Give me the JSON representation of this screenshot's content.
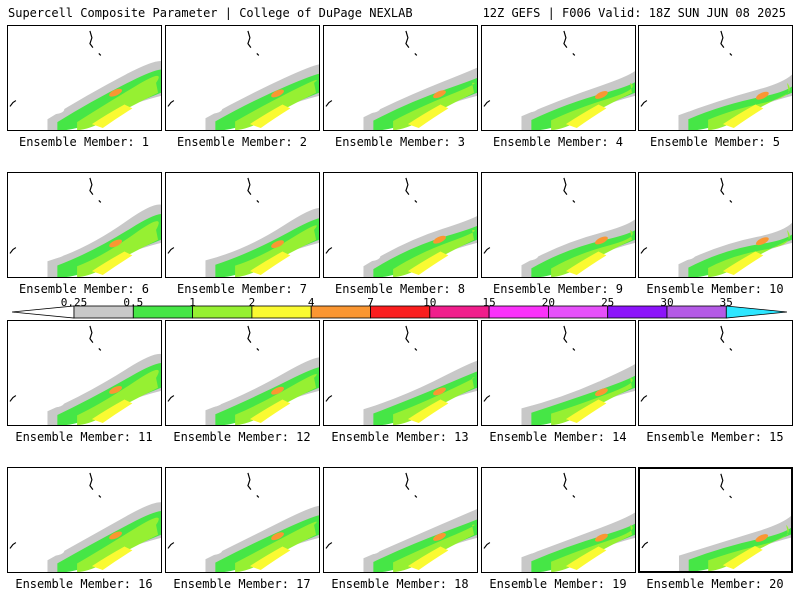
{
  "header": {
    "left_title": "Supercell Composite Parameter | College of DuPage NEXLAB",
    "right_title": "12Z GEFS | F006 Valid: 18Z SUN JUN 08 2025"
  },
  "colorbar": {
    "labels": [
      "0.25",
      "0.5",
      "1",
      "2",
      "4",
      "7",
      "10",
      "15",
      "20",
      "25",
      "30",
      "35"
    ],
    "colors": [
      "#ffffff",
      "#c8c8c8",
      "#46e646",
      "#96f032",
      "#fafa32",
      "#fa9632",
      "#fa1e1e",
      "#f01e8c",
      "#fa32fa",
      "#e650fa",
      "#8c14fa",
      "#b45ae6",
      "#2de6ff"
    ]
  },
  "members": [
    {
      "label": "Ensemble Member: 1"
    },
    {
      "label": "Ensemble Member: 2"
    },
    {
      "label": "Ensemble Member: 3"
    },
    {
      "label": "Ensemble Member: 4"
    },
    {
      "label": "Ensemble Member: 5"
    },
    {
      "label": "Ensemble Member: 6"
    },
    {
      "label": "Ensemble Member: 7"
    },
    {
      "label": "Ensemble Member: 8"
    },
    {
      "label": "Ensemble Member: 9"
    },
    {
      "label": "Ensemble Member: 10"
    },
    {
      "label": "Ensemble Member: 11"
    },
    {
      "label": "Ensemble Member: 12"
    },
    {
      "label": "Ensemble Member: 13"
    },
    {
      "label": "Ensemble Member: 14"
    },
    {
      "label": "Ensemble Member: 15"
    },
    {
      "label": "Ensemble Member: 16"
    },
    {
      "label": "Ensemble Member: 17"
    },
    {
      "label": "Ensemble Member: 18"
    },
    {
      "label": "Ensemble Member: 19"
    },
    {
      "label": "Ensemble Member: 20",
      "selected": true
    }
  ]
}
